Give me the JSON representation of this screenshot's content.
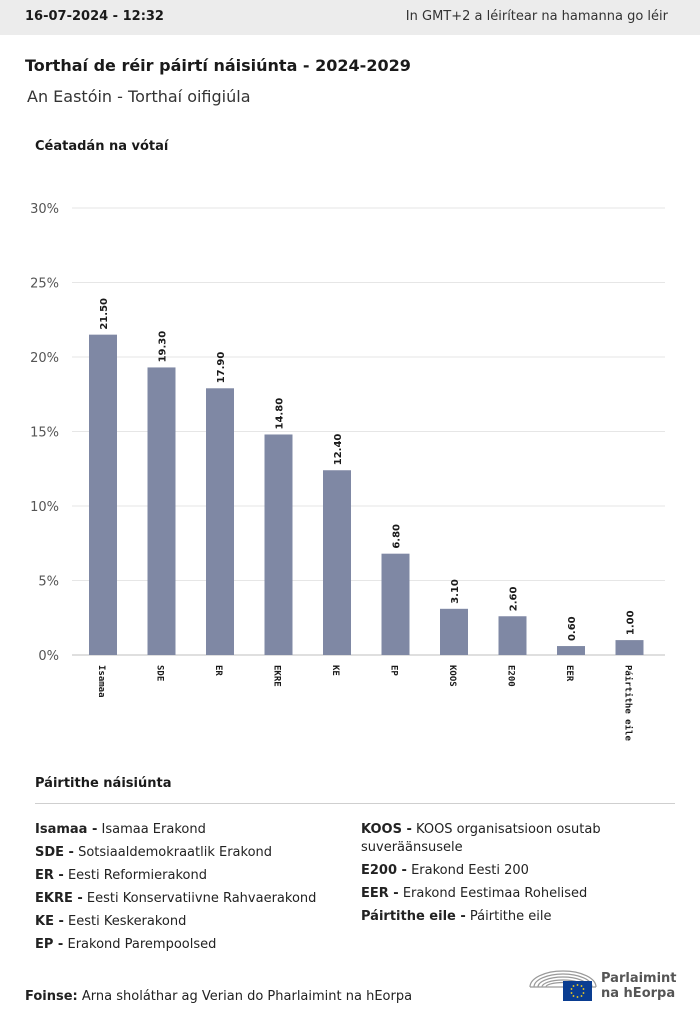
{
  "header": {
    "timestamp": "16-07-2024 - 12:32",
    "timezone_note": "In GMT+2 a léirítear na hamanna go léir"
  },
  "title": "Torthaí de réir páirtí náisiúnta - 2024-2029",
  "subtitle": "An Eastóin - Torthaí oifigiúla",
  "chart_data": {
    "type": "bar",
    "ylabel": "Céatadán na vótaí",
    "ylim": [
      0,
      30
    ],
    "yticks": [
      "0%",
      "5%",
      "10%",
      "15%",
      "20%",
      "25%",
      "30%"
    ],
    "categories": [
      "Isamaa",
      "SDE",
      "ER",
      "EKRE",
      "KE",
      "EP",
      "KOOS",
      "E200",
      "EER",
      "Páirtithe eile"
    ],
    "values": [
      21.5,
      19.3,
      17.9,
      14.8,
      12.4,
      6.8,
      3.1,
      2.6,
      0.6,
      1.0
    ],
    "value_labels": [
      "21.50",
      "19.30",
      "17.90",
      "14.80",
      "12.40",
      "6.80",
      "3.10",
      "2.60",
      "0.60",
      "1.00"
    ],
    "bar_color": "#7f88a4",
    "grid": true
  },
  "legend": {
    "title": "Páirtithe náisiúnta",
    "left": [
      {
        "code": "Isamaa -",
        "name": "Isamaa Erakond"
      },
      {
        "code": "SDE -",
        "name": "Sotsiaaldemokraatlik Erakond"
      },
      {
        "code": "ER -",
        "name": "Eesti Reformierakond"
      },
      {
        "code": "EKRE -",
        "name": "Eesti Konservatiivne Rahvaerakond"
      },
      {
        "code": "KE -",
        "name": "Eesti Keskerakond"
      },
      {
        "code": "EP -",
        "name": "Erakond Parempoolsed"
      }
    ],
    "right": [
      {
        "code": "KOOS -",
        "name": "KOOS organisatsioon osutab suveräänsusele"
      },
      {
        "code": "E200 -",
        "name": "Erakond Eesti 200"
      },
      {
        "code": "EER -",
        "name": "Erakond Eestimaa Rohelised"
      },
      {
        "code": "Páirtithe eile -",
        "name": "Páirtithe eile"
      }
    ]
  },
  "source": {
    "label": "Foinse:",
    "text": "Arna sholáthar ag Verian do Pharlaimint na hEorpa"
  },
  "logo": {
    "line1": "Parlaimint",
    "line2": "na hEorpa",
    "flag_color": "#0a3d91"
  }
}
